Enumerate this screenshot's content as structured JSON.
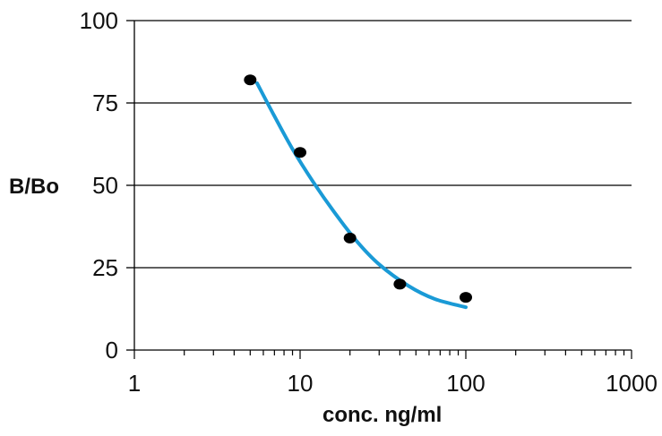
{
  "chart_data": {
    "type": "scatter",
    "title": "",
    "xlabel": "conc. ng/ml",
    "ylabel": "B/Bo",
    "x_scale": "log",
    "xlim": [
      1,
      1000
    ],
    "ylim": [
      0,
      100
    ],
    "x_ticks": [
      "1",
      "10",
      "100",
      "1000"
    ],
    "y_ticks": [
      "0",
      "25",
      "50",
      "75",
      "100"
    ],
    "grid": "horizontal",
    "points": [
      {
        "x": 5,
        "y": 82
      },
      {
        "x": 10,
        "y": 60
      },
      {
        "x": 20,
        "y": 34
      },
      {
        "x": 40,
        "y": 20
      },
      {
        "x": 100,
        "y": 16
      }
    ],
    "fit_curve": [
      {
        "x": 5.5,
        "y": 81
      },
      {
        "x": 7,
        "y": 71
      },
      {
        "x": 9,
        "y": 61
      },
      {
        "x": 12,
        "y": 51
      },
      {
        "x": 16,
        "y": 42
      },
      {
        "x": 22,
        "y": 33
      },
      {
        "x": 30,
        "y": 26
      },
      {
        "x": 45,
        "y": 19.5
      },
      {
        "x": 65,
        "y": 15.5
      },
      {
        "x": 100,
        "y": 13
      }
    ],
    "colors": {
      "curve": "#1a9ad6",
      "points": "#000000",
      "grid": "#000000"
    }
  }
}
